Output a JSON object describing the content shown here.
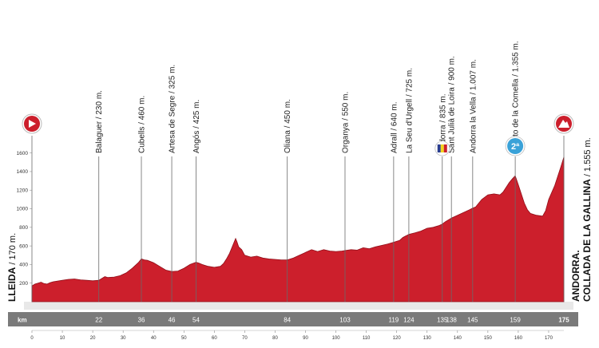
{
  "chart_data": {
    "type": "area",
    "xlim": [
      0,
      175
    ],
    "ylim": [
      0,
      1700
    ],
    "yticks": [
      200,
      400,
      600,
      800,
      1000,
      1200,
      1400,
      1600
    ],
    "xticks": [
      0,
      10,
      20,
      30,
      40,
      50,
      60,
      70,
      80,
      90,
      100,
      110,
      120,
      130,
      140,
      150,
      160,
      170
    ],
    "km_row_label": "km",
    "km_labels": [
      {
        "km": 22,
        "text": "22"
      },
      {
        "km": 36,
        "text": "36"
      },
      {
        "km": 46,
        "text": "46"
      },
      {
        "km": 54,
        "text": "54"
      },
      {
        "km": 84,
        "text": "84"
      },
      {
        "km": 103,
        "text": "103"
      },
      {
        "km": 119,
        "text": "119"
      },
      {
        "km": 124,
        "text": "124"
      },
      {
        "km": 135,
        "text": "135"
      },
      {
        "km": 138,
        "text": "138"
      },
      {
        "km": 145,
        "text": "145"
      },
      {
        "km": 159,
        "text": "159"
      },
      {
        "km": 175,
        "text": "175"
      }
    ],
    "waypoints": [
      {
        "km": 22,
        "name": "Balaguer",
        "alt": "230 m."
      },
      {
        "km": 36,
        "name": "Cubells",
        "alt": "460 m."
      },
      {
        "km": 46,
        "name": "Artesa de Segre",
        "alt": "325 m."
      },
      {
        "km": 54,
        "name": "Angós",
        "alt": "425 m."
      },
      {
        "km": 84,
        "name": "Oliana",
        "alt": "450 m."
      },
      {
        "km": 103,
        "name": "Organya",
        "alt": "550 m."
      },
      {
        "km": 119,
        "name": "Adrall",
        "alt": "640 m."
      },
      {
        "km": 124,
        "name": "La Seu d'Urgell",
        "alt": "725 m."
      },
      {
        "km": 135,
        "name": "Andorra",
        "alt": "835 m."
      },
      {
        "km": 138,
        "name": "Sant Julià de Loira",
        "alt": "900 m."
      },
      {
        "km": 145,
        "name": "Andorra la Vella",
        "alt": "1.007 m."
      },
      {
        "km": 159,
        "name": "Puerto de la Comella",
        "alt": "1.355 m."
      }
    ],
    "start": {
      "name": "LLEIDA",
      "alt": "170 m."
    },
    "finish": {
      "line1": "ANDORRA.",
      "line2": "COLLADA DE LA GALLINA",
      "alt": "1.555 m."
    },
    "climb_category": "2ª",
    "profile": [
      [
        0,
        170
      ],
      [
        1,
        190
      ],
      [
        2,
        200
      ],
      [
        3,
        210
      ],
      [
        4,
        195
      ],
      [
        5,
        190
      ],
      [
        6,
        205
      ],
      [
        7,
        215
      ],
      [
        8,
        220
      ],
      [
        10,
        230
      ],
      [
        12,
        240
      ],
      [
        14,
        245
      ],
      [
        16,
        235
      ],
      [
        18,
        230
      ],
      [
        20,
        225
      ],
      [
        22,
        230
      ],
      [
        23,
        250
      ],
      [
        24,
        270
      ],
      [
        25,
        260
      ],
      [
        27,
        265
      ],
      [
        29,
        280
      ],
      [
        31,
        310
      ],
      [
        33,
        360
      ],
      [
        35,
        420
      ],
      [
        36,
        460
      ],
      [
        37,
        450
      ],
      [
        38,
        445
      ],
      [
        40,
        420
      ],
      [
        42,
        380
      ],
      [
        44,
        340
      ],
      [
        46,
        325
      ],
      [
        48,
        330
      ],
      [
        50,
        360
      ],
      [
        52,
        400
      ],
      [
        54,
        425
      ],
      [
        55,
        415
      ],
      [
        56,
        400
      ],
      [
        58,
        380
      ],
      [
        60,
        370
      ],
      [
        62,
        380
      ],
      [
        63,
        410
      ],
      [
        64,
        460
      ],
      [
        65,
        520
      ],
      [
        66,
        600
      ],
      [
        67,
        680
      ],
      [
        67.5,
        640
      ],
      [
        68,
        590
      ],
      [
        69,
        560
      ],
      [
        70,
        500
      ],
      [
        72,
        480
      ],
      [
        74,
        490
      ],
      [
        76,
        470
      ],
      [
        78,
        460
      ],
      [
        80,
        455
      ],
      [
        82,
        450
      ],
      [
        84,
        450
      ],
      [
        86,
        470
      ],
      [
        88,
        500
      ],
      [
        90,
        530
      ],
      [
        92,
        560
      ],
      [
        94,
        540
      ],
      [
        96,
        560
      ],
      [
        98,
        545
      ],
      [
        100,
        540
      ],
      [
        102,
        545
      ],
      [
        103,
        550
      ],
      [
        105,
        560
      ],
      [
        107,
        555
      ],
      [
        109,
        580
      ],
      [
        111,
        570
      ],
      [
        113,
        590
      ],
      [
        115,
        605
      ],
      [
        117,
        620
      ],
      [
        119,
        640
      ],
      [
        121,
        660
      ],
      [
        122,
        690
      ],
      [
        124,
        725
      ],
      [
        126,
        740
      ],
      [
        128,
        760
      ],
      [
        130,
        790
      ],
      [
        132,
        800
      ],
      [
        134,
        820
      ],
      [
        135,
        835
      ],
      [
        136,
        860
      ],
      [
        138,
        900
      ],
      [
        140,
        930
      ],
      [
        142,
        960
      ],
      [
        144,
        990
      ],
      [
        145,
        1007
      ],
      [
        146,
        1020
      ],
      [
        148,
        1100
      ],
      [
        150,
        1150
      ],
      [
        152,
        1160
      ],
      [
        154,
        1150
      ],
      [
        155,
        1180
      ],
      [
        156,
        1230
      ],
      [
        157,
        1280
      ],
      [
        158,
        1320
      ],
      [
        159,
        1355
      ],
      [
        160,
        1260
      ],
      [
        161,
        1160
      ],
      [
        162,
        1060
      ],
      [
        163,
        990
      ],
      [
        164,
        950
      ],
      [
        166,
        930
      ],
      [
        168,
        920
      ],
      [
        169,
        980
      ],
      [
        170,
        1100
      ],
      [
        172,
        1250
      ],
      [
        174,
        1450
      ],
      [
        175,
        1555
      ]
    ]
  },
  "colors": {
    "profile_fill": "#cc1f2c",
    "profile_dark": "#8f0e18",
    "base_band": "#e8e8e8",
    "km_band": "#7a7a7a",
    "marker_line": "#6a6a6a",
    "andorra_flag_blue": "#2a3e8f",
    "andorra_flag_yellow": "#f4d41b",
    "climb_icon": "#3aa2d8"
  },
  "icons": {
    "start": "start-arrow-icon",
    "finish": "mountain-finish-icon",
    "border": "andorra-flag-icon",
    "climb": "climb-category-icon"
  }
}
